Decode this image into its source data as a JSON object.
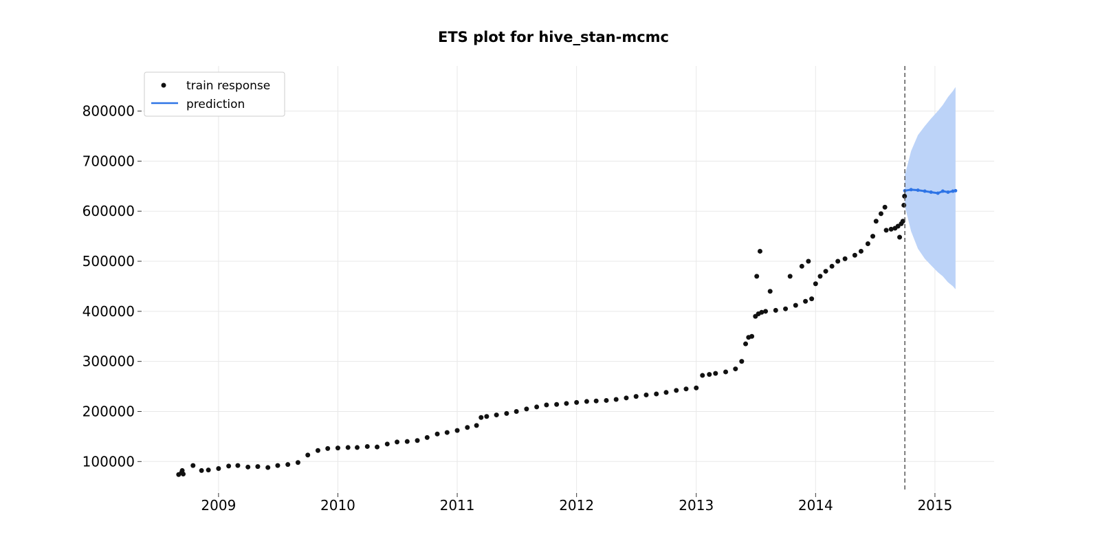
{
  "chart_data": {
    "type": "scatter",
    "title": "ETS plot for hive_stan-mcmc",
    "xlabel": "",
    "ylabel": "",
    "x_ticks": [
      "2009",
      "2010",
      "2011",
      "2012",
      "2013",
      "2014",
      "2015"
    ],
    "y_ticks": [
      "100000",
      "200000",
      "300000",
      "400000",
      "500000",
      "600000",
      "700000",
      "800000"
    ],
    "xlim": [
      "2008-05-15",
      "2015-07-01"
    ],
    "ylim": [
      40000,
      890000
    ],
    "grid": true,
    "legend": {
      "placement": "top-left",
      "entries": [
        {
          "label": "train response",
          "marker": "dot",
          "color": "#111111"
        },
        {
          "label": "prediction",
          "marker": "line",
          "color": "#2e74e6"
        }
      ]
    },
    "forecast_start": "2014-10-01",
    "series": [
      {
        "name": "train response",
        "kind": "points",
        "color": "#111111",
        "points": [
          [
            "2008-09-01",
            74000
          ],
          [
            "2008-09-10",
            78000
          ],
          [
            "2008-09-12",
            82000
          ],
          [
            "2008-09-15",
            75000
          ],
          [
            "2008-10-15",
            92000
          ],
          [
            "2008-11-10",
            82000
          ],
          [
            "2008-12-01",
            83000
          ],
          [
            "2009-01-01",
            86000
          ],
          [
            "2009-02-01",
            91000
          ],
          [
            "2009-03-01",
            92000
          ],
          [
            "2009-04-01",
            89000
          ],
          [
            "2009-05-01",
            90000
          ],
          [
            "2009-06-01",
            88000
          ],
          [
            "2009-07-01",
            92000
          ],
          [
            "2009-08-01",
            94000
          ],
          [
            "2009-09-01",
            98000
          ],
          [
            "2009-10-01",
            113000
          ],
          [
            "2009-11-01",
            122000
          ],
          [
            "2009-12-01",
            126000
          ],
          [
            "2010-01-01",
            127000
          ],
          [
            "2010-02-01",
            128000
          ],
          [
            "2010-03-01",
            128000
          ],
          [
            "2010-04-01",
            130000
          ],
          [
            "2010-05-01",
            129000
          ],
          [
            "2010-06-01",
            135000
          ],
          [
            "2010-07-01",
            139000
          ],
          [
            "2010-08-01",
            140000
          ],
          [
            "2010-09-01",
            142000
          ],
          [
            "2010-10-01",
            148000
          ],
          [
            "2010-11-01",
            155000
          ],
          [
            "2010-12-01",
            158000
          ],
          [
            "2011-01-01",
            162000
          ],
          [
            "2011-02-01",
            168000
          ],
          [
            "2011-03-01",
            172000
          ],
          [
            "2011-03-15",
            188000
          ],
          [
            "2011-04-01",
            190000
          ],
          [
            "2011-05-01",
            193000
          ],
          [
            "2011-06-01",
            196000
          ],
          [
            "2011-07-01",
            200000
          ],
          [
            "2011-08-01",
            205000
          ],
          [
            "2011-09-01",
            209000
          ],
          [
            "2011-10-01",
            213000
          ],
          [
            "2011-11-01",
            214000
          ],
          [
            "2011-12-01",
            216000
          ],
          [
            "2012-01-01",
            218000
          ],
          [
            "2012-02-01",
            220000
          ],
          [
            "2012-03-01",
            221000
          ],
          [
            "2012-04-01",
            222000
          ],
          [
            "2012-05-01",
            224000
          ],
          [
            "2012-06-01",
            227000
          ],
          [
            "2012-07-01",
            230000
          ],
          [
            "2012-08-01",
            233000
          ],
          [
            "2012-09-01",
            235000
          ],
          [
            "2012-10-01",
            238000
          ],
          [
            "2012-11-01",
            242000
          ],
          [
            "2012-12-01",
            245000
          ],
          [
            "2013-01-01",
            247000
          ],
          [
            "2013-01-20",
            272000
          ],
          [
            "2013-02-10",
            274000
          ],
          [
            "2013-03-01",
            276000
          ],
          [
            "2013-04-01",
            279000
          ],
          [
            "2013-05-01",
            285000
          ],
          [
            "2013-05-20",
            300000
          ],
          [
            "2013-06-01",
            335000
          ],
          [
            "2013-06-10",
            348000
          ],
          [
            "2013-06-20",
            350000
          ],
          [
            "2013-07-01",
            390000
          ],
          [
            "2013-07-10",
            395000
          ],
          [
            "2013-07-20",
            398000
          ],
          [
            "2013-08-01",
            400000
          ],
          [
            "2013-09-01",
            402000
          ],
          [
            "2013-10-01",
            405000
          ],
          [
            "2013-11-01",
            412000
          ],
          [
            "2013-12-01",
            420000
          ],
          [
            "2013-12-20",
            425000
          ],
          [
            "2013-07-05",
            470000
          ],
          [
            "2013-08-15",
            440000
          ],
          [
            "2013-07-15",
            520000
          ],
          [
            "2013-10-15",
            470000
          ],
          [
            "2013-11-20",
            490000
          ],
          [
            "2013-12-10",
            500000
          ],
          [
            "2014-01-01",
            455000
          ],
          [
            "2014-01-15",
            470000
          ],
          [
            "2014-02-01",
            480000
          ],
          [
            "2014-02-20",
            490000
          ],
          [
            "2014-03-10",
            500000
          ],
          [
            "2014-04-01",
            505000
          ],
          [
            "2014-05-01",
            512000
          ],
          [
            "2014-05-20",
            520000
          ],
          [
            "2014-06-10",
            535000
          ],
          [
            "2014-06-25",
            550000
          ],
          [
            "2014-07-05",
            580000
          ],
          [
            "2014-07-20",
            595000
          ],
          [
            "2014-08-01",
            608000
          ],
          [
            "2014-08-05",
            562000
          ],
          [
            "2014-08-20",
            564000
          ],
          [
            "2014-09-01",
            566000
          ],
          [
            "2014-09-10",
            570000
          ],
          [
            "2014-09-20",
            575000
          ],
          [
            "2014-09-25",
            580000
          ],
          [
            "2014-09-15",
            548000
          ],
          [
            "2014-09-28",
            612000
          ],
          [
            "2014-09-30",
            630000
          ]
        ]
      },
      {
        "name": "prediction",
        "kind": "line",
        "color": "#2e74e6",
        "points": [
          [
            "2014-10-01",
            641000
          ],
          [
            "2014-10-20",
            643000
          ],
          [
            "2014-11-10",
            642000
          ],
          [
            "2014-12-01",
            640000
          ],
          [
            "2014-12-20",
            638000
          ],
          [
            "2015-01-10",
            636000
          ],
          [
            "2015-01-25",
            640000
          ],
          [
            "2015-02-10",
            638000
          ],
          [
            "2015-02-25",
            640000
          ],
          [
            "2015-03-05",
            641000
          ]
        ]
      },
      {
        "name": "",
        "kind": "band",
        "color": "#bcd3f8",
        "points": [
          [
            "2014-10-01",
            610000,
            672000
          ],
          [
            "2014-10-20",
            560000,
            720000
          ],
          [
            "2014-11-10",
            525000,
            752000
          ],
          [
            "2014-12-01",
            505000,
            770000
          ],
          [
            "2014-12-20",
            492000,
            785000
          ],
          [
            "2015-01-10",
            478000,
            800000
          ],
          [
            "2015-01-25",
            470000,
            812000
          ],
          [
            "2015-02-10",
            458000,
            828000
          ],
          [
            "2015-02-25",
            450000,
            840000
          ],
          [
            "2015-03-05",
            444000,
            848000
          ]
        ]
      }
    ]
  }
}
